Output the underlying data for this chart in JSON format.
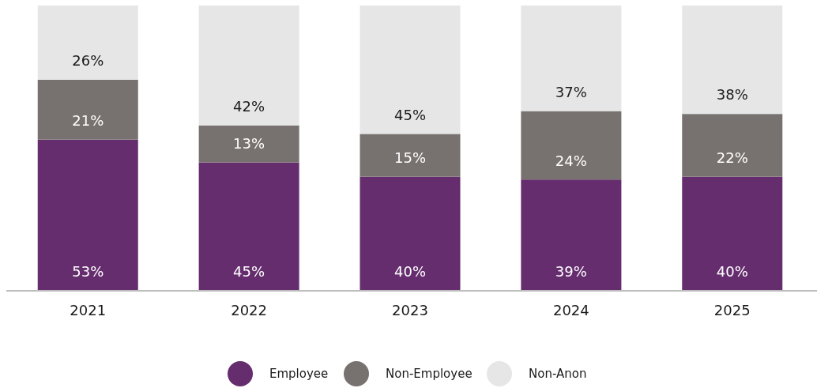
{
  "chart_data": {
    "type": "bar",
    "stacked": true,
    "categories": [
      "2021",
      "2022",
      "2023",
      "2024",
      "2025"
    ],
    "series": [
      {
        "name": "Employee",
        "color": "#652d6e",
        "values": [
          53,
          45,
          40,
          39,
          40
        ],
        "value_labels": [
          "53%",
          "45%",
          "40%",
          "39%",
          "40%"
        ]
      },
      {
        "name": "Non-Employee",
        "color": "#77726f",
        "values": [
          21,
          13,
          15,
          24,
          22
        ],
        "value_labels": [
          "21%",
          "13%",
          "15%",
          "24%",
          "22%"
        ]
      },
      {
        "name": "Non-Anon",
        "color": "#e6e6e6",
        "values": [
          26,
          42,
          45,
          37,
          38
        ],
        "value_labels": [
          "26%",
          "42%",
          "45%",
          "37%",
          "38%"
        ]
      }
    ],
    "legend": "bottom"
  }
}
